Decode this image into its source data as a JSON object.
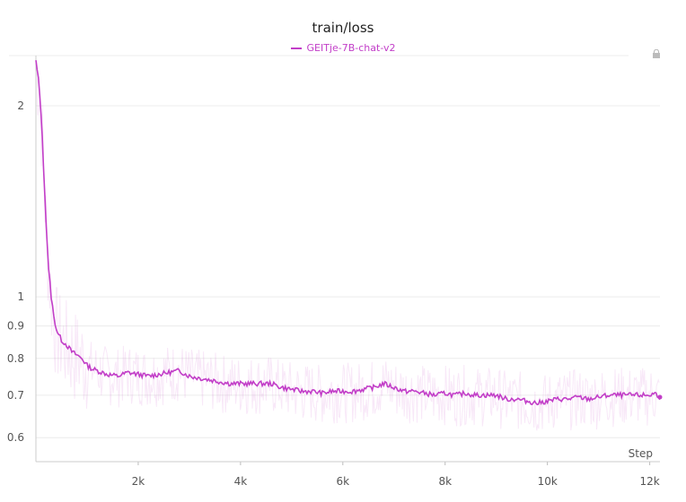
{
  "chart_data": {
    "type": "line",
    "title": "train/loss",
    "xlabel": "Step",
    "ylabel": "",
    "y_scale": "log",
    "xlim": [
      0,
      12200
    ],
    "ylim": [
      0.55,
      2.4
    ],
    "x_ticks": [
      2000,
      4000,
      6000,
      8000,
      10000,
      12000
    ],
    "x_tick_labels": [
      "2k",
      "4k",
      "6k",
      "8k",
      "10k",
      "12k"
    ],
    "y_ticks": [
      0.6,
      0.7,
      0.8,
      0.9,
      1,
      2
    ],
    "y_tick_labels": [
      "0.6",
      "0.7",
      "0.8",
      "0.9",
      "1",
      "2"
    ],
    "grid": true,
    "legend_position": "top-center",
    "series": [
      {
        "name": "GEITje-7B-chat-v2",
        "color": "#c23ec8",
        "smoothed_x": [
          0,
          50,
          100,
          150,
          200,
          250,
          300,
          350,
          400,
          450,
          500,
          600,
          700,
          800,
          900,
          1000,
          1100,
          1200,
          1300,
          1400,
          1600,
          1800,
          2000,
          2200,
          2400,
          2600,
          2800,
          3000,
          3200,
          3400,
          3600,
          3800,
          4000,
          4200,
          4400,
          4600,
          4800,
          5000,
          5200,
          5400,
          5600,
          5800,
          6000,
          6200,
          6400,
          6600,
          6800,
          7000,
          7200,
          7400,
          7600,
          7800,
          8000,
          8200,
          8400,
          8600,
          8800,
          9000,
          9200,
          9400,
          9600,
          9800,
          10000,
          10200,
          10400,
          10600,
          10800,
          11000,
          11200,
          11400,
          11600,
          11800,
          12000,
          12100,
          12200
        ],
        "smoothed_y": [
          2.35,
          2.2,
          1.95,
          1.6,
          1.3,
          1.1,
          1.0,
          0.93,
          0.89,
          0.87,
          0.855,
          0.84,
          0.82,
          0.81,
          0.8,
          0.78,
          0.77,
          0.765,
          0.76,
          0.755,
          0.75,
          0.76,
          0.755,
          0.75,
          0.755,
          0.76,
          0.765,
          0.75,
          0.745,
          0.74,
          0.735,
          0.73,
          0.73,
          0.73,
          0.73,
          0.73,
          0.72,
          0.715,
          0.71,
          0.71,
          0.705,
          0.71,
          0.71,
          0.71,
          0.715,
          0.72,
          0.73,
          0.72,
          0.71,
          0.71,
          0.705,
          0.7,
          0.705,
          0.7,
          0.705,
          0.7,
          0.7,
          0.7,
          0.69,
          0.69,
          0.685,
          0.68,
          0.685,
          0.69,
          0.69,
          0.695,
          0.69,
          0.695,
          0.7,
          0.7,
          0.7,
          0.7,
          0.7,
          0.705,
          0.695
        ]
      }
    ]
  },
  "header": {
    "title": "train/loss"
  },
  "legend": {
    "label": "GEITje-7B-chat-v2",
    "color": "#c23ec8"
  },
  "icons": {
    "corner": "lock-icon"
  }
}
